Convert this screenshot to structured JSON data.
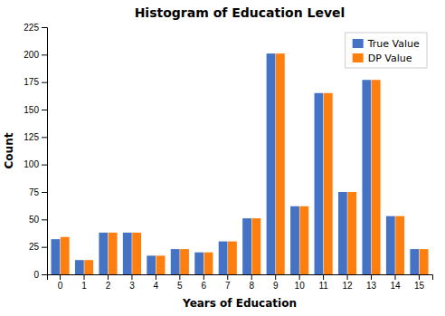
{
  "chart_data": {
    "type": "bar",
    "title": "Histogram of Education Level",
    "xlabel": "Years of Education",
    "ylabel": "Count",
    "categories": [
      0,
      1,
      2,
      3,
      4,
      5,
      6,
      7,
      8,
      9,
      10,
      11,
      12,
      13,
      14,
      15
    ],
    "series": [
      {
        "name": "True Value",
        "color": "#4472c4",
        "values": [
          32,
          13,
          38,
          38,
          17,
          23,
          20,
          30,
          51,
          201,
          62,
          165,
          75,
          177,
          53,
          23
        ]
      },
      {
        "name": "DP Value",
        "color": "#ff7f0e",
        "values": [
          34,
          13,
          38,
          38,
          17,
          23,
          20,
          30,
          51,
          201,
          62,
          165,
          75,
          177,
          53,
          23
        ]
      }
    ],
    "ylim": [
      0,
      225
    ],
    "yticks": [
      0,
      25,
      50,
      75,
      100,
      125,
      150,
      175,
      200,
      225
    ],
    "legend": "upper-right",
    "grid": false
  }
}
